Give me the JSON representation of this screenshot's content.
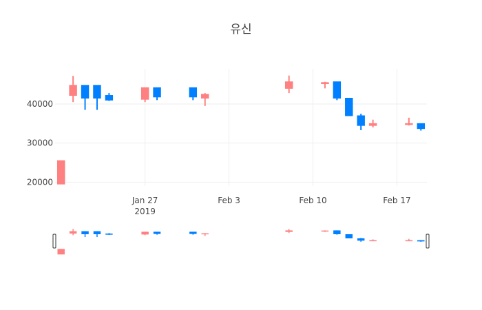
{
  "chart_data": {
    "type": "candlestick",
    "title": "유신",
    "xlabel": "",
    "ylabel": "",
    "ylim": [
      19000,
      49000
    ],
    "x_range": [
      "2019-01-20",
      "2019-02-19"
    ],
    "grid": true,
    "has_range_slider": true,
    "colors": {
      "increasing": "#FF8080",
      "decreasing": "#0080FF",
      "grid": "#EEEEEE",
      "text": "#444444"
    },
    "y_ticks": [
      {
        "value": 20000,
        "label": "20000"
      },
      {
        "value": 30000,
        "label": "30000"
      },
      {
        "value": 40000,
        "label": "40000"
      }
    ],
    "x_ticks": [
      {
        "date": "2019-01-27",
        "label": "Jan 27",
        "sublabel": "2019"
      },
      {
        "date": "2019-02-03",
        "label": "Feb 3",
        "sublabel": ""
      },
      {
        "date": "2019-02-10",
        "label": "Feb 10",
        "sublabel": ""
      },
      {
        "date": "2019-02-17",
        "label": "Feb 17",
        "sublabel": ""
      }
    ],
    "series": [
      {
        "date": "2019-01-20",
        "open": 19500,
        "high": 25500,
        "low": 19500,
        "close": 25500
      },
      {
        "date": "2019-01-21",
        "open": 42200,
        "high": 47200,
        "low": 40500,
        "close": 44800
      },
      {
        "date": "2019-01-22",
        "open": 44800,
        "high": 44800,
        "low": 38500,
        "close": 41500
      },
      {
        "date": "2019-01-23",
        "open": 44800,
        "high": 44800,
        "low": 38500,
        "close": 41500
      },
      {
        "date": "2019-01-24",
        "open": 42200,
        "high": 42800,
        "low": 40800,
        "close": 41000
      },
      {
        "date": "2019-01-27",
        "open": 41200,
        "high": 44200,
        "low": 40500,
        "close": 44200
      },
      {
        "date": "2019-01-28",
        "open": 44200,
        "high": 44200,
        "low": 41000,
        "close": 41800
      },
      {
        "date": "2019-01-31",
        "open": 44200,
        "high": 44200,
        "low": 41000,
        "close": 41800
      },
      {
        "date": "2019-02-01",
        "open": 41500,
        "high": 42800,
        "low": 39500,
        "close": 42500
      },
      {
        "date": "2019-02-08",
        "open": 44000,
        "high": 47300,
        "low": 42800,
        "close": 45700
      },
      {
        "date": "2019-02-11",
        "open": 45200,
        "high": 45700,
        "low": 44000,
        "close": 45500
      },
      {
        "date": "2019-02-12",
        "open": 45700,
        "high": 45700,
        "low": 41000,
        "close": 41500
      },
      {
        "date": "2019-02-13",
        "open": 41500,
        "high": 41500,
        "low": 37000,
        "close": 37000
      },
      {
        "date": "2019-02-14",
        "open": 37000,
        "high": 37500,
        "low": 33300,
        "close": 34500
      },
      {
        "date": "2019-02-15",
        "open": 34500,
        "high": 36000,
        "low": 34000,
        "close": 35000
      },
      {
        "date": "2019-02-18",
        "open": 34800,
        "high": 36500,
        "low": 34500,
        "close": 35000
      },
      {
        "date": "2019-02-19",
        "open": 35000,
        "high": 35000,
        "low": 33200,
        "close": 33700
      }
    ]
  }
}
